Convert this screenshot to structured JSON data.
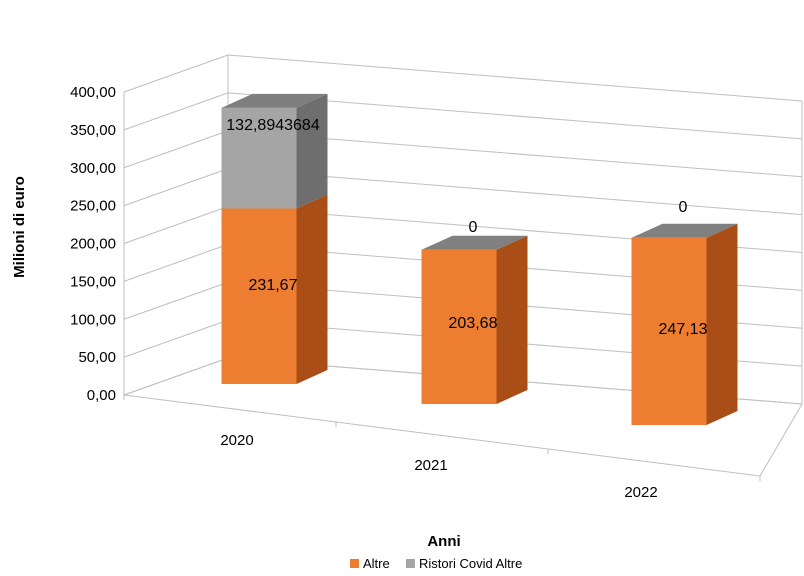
{
  "chart_data": {
    "type": "bar",
    "stacked": true,
    "three_d": true,
    "title": "",
    "xlabel": "Anni",
    "ylabel": "Milioni di euro",
    "categories": [
      "2020",
      "2021",
      "2022"
    ],
    "series": [
      {
        "name": "Altre",
        "values": [
          231.67,
          203.68,
          247.13
        ],
        "labels": [
          "231,67",
          "203,68",
          "247,13"
        ],
        "color": "#ED7D31"
      },
      {
        "name": "Ristori Covid Altre",
        "values": [
          132.8943684,
          0,
          0
        ],
        "labels": [
          "132,8943684",
          "0",
          "0"
        ],
        "color": "#A5A5A5"
      }
    ],
    "ylim": [
      0,
      400
    ],
    "y_ticks": [
      "0,00",
      "50,00",
      "100,00",
      "150,00",
      "200,00",
      "250,00",
      "300,00",
      "350,00",
      "400,00"
    ],
    "grid": true,
    "legend_position": "bottom"
  }
}
